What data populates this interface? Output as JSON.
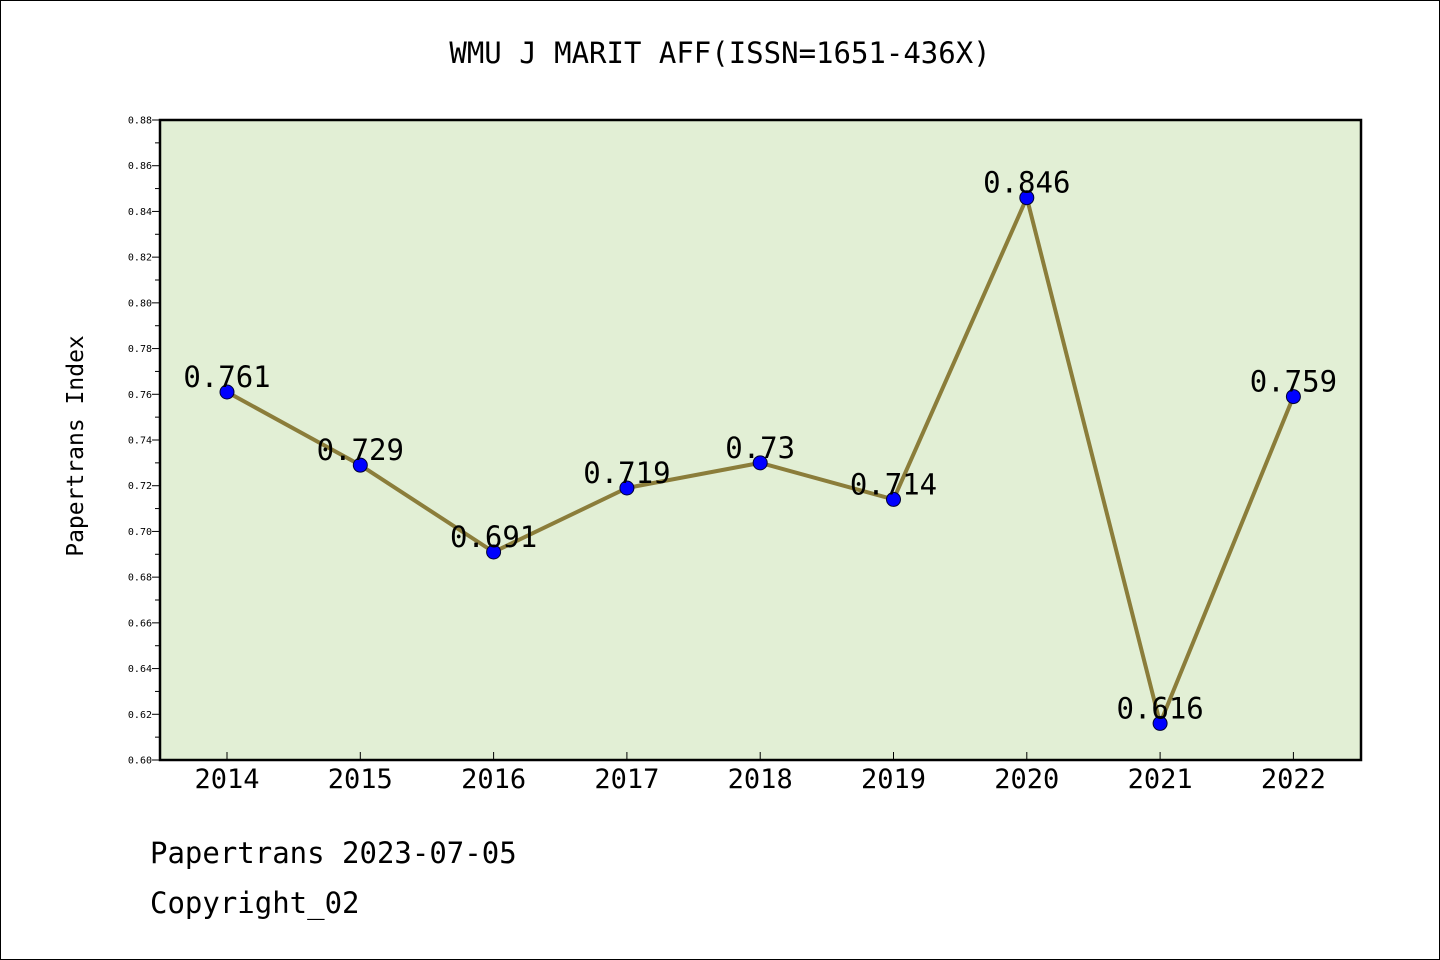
{
  "chart_data": {
    "type": "line",
    "title": "WMU J MARIT AFF(ISSN=1651-436X)",
    "ylabel": "Papertrans Index",
    "xlabel": "",
    "categories": [
      "2014",
      "2015",
      "2016",
      "2017",
      "2018",
      "2019",
      "2020",
      "2021",
      "2022"
    ],
    "values": [
      0.761,
      0.729,
      0.691,
      0.719,
      0.73,
      0.714,
      0.846,
      0.616,
      0.759
    ],
    "data_labels": [
      "0.761",
      "0.729",
      "0.691",
      "0.719",
      "0.73",
      "0.714",
      "0.846",
      "0.616",
      "0.759"
    ],
    "ylim": [
      0.6,
      0.88
    ],
    "yticks": [
      "0.60",
      "0.62",
      "0.64",
      "0.66",
      "0.68",
      "0.70",
      "0.72",
      "0.74",
      "0.76",
      "0.78",
      "0.80",
      "0.82",
      "0.84",
      "0.86",
      "0.88"
    ],
    "grid": false,
    "colors": {
      "plot_background": "#e2efd5",
      "line": "#8b7d3a",
      "marker": "#0000ff"
    }
  },
  "footer": {
    "line1": "Papertrans 2023-07-05",
    "line2": "Copyright_02"
  }
}
